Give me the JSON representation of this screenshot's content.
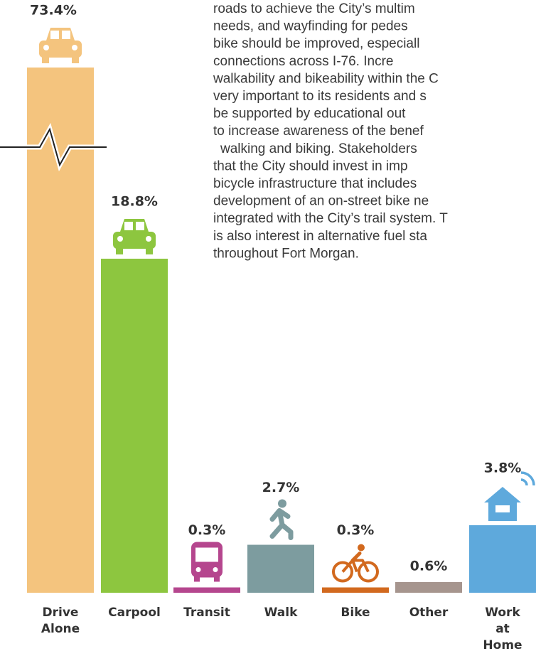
{
  "paragraph": [
    "roads to achieve the City’s multim",
    "needs, and wayfinding for pedes",
    "bike should be improved, especiall",
    "connections across I-76. Incre",
    "walkability and bikeability within the C",
    "very important to its residents and s",
    "be supported by educational out",
    "to increase awareness of the benef",
    "walking and biking. Stakeholders",
    "that the City should invest in imp",
    "bicycle infrastructure that includes",
    "development of an on-street bike ne",
    "integrated with the City’s trail system. T",
    "is also interest in alternative fuel sta",
    "throughout Fort Morgan."
  ],
  "chart_data": {
    "type": "bar",
    "categories": [
      [
        "Drive",
        "Alone"
      ],
      [
        "Carpool"
      ],
      [
        "Transit"
      ],
      [
        "Walk"
      ],
      [
        "Bike"
      ],
      [
        "Other"
      ],
      [
        "Work",
        "at",
        "Home"
      ]
    ],
    "values": [
      73.4,
      18.8,
      0.3,
      2.7,
      0.3,
      0.6,
      3.8
    ],
    "value_labels": [
      "73.4%",
      "18.8%",
      "0.3%",
      "2.7%",
      "0.3%",
      "0.6%",
      "3.8%"
    ],
    "colors": [
      "#f4c47e",
      "#8dc63f",
      "#b5468e",
      "#7d9c9f",
      "#d2691e",
      "#a6958e",
      "#5ea9dc"
    ],
    "broken": [
      true,
      false,
      false,
      false,
      false,
      false,
      false
    ]
  }
}
